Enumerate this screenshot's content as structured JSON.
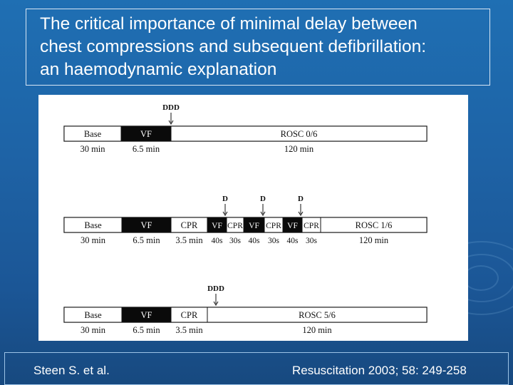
{
  "slide": {
    "title": "The critical importance of minimal delay between\nchest compressions and subsequent defibrillation:\nan haemodynamic explanation",
    "footer_left": "Steen S. et al.",
    "footer_right": "Resuscitation 2003; 58: 249-258"
  },
  "diagram": {
    "rows": [
      {
        "markers": [
          {
            "label": "DDD"
          }
        ],
        "segments": [
          {
            "label": "Base",
            "dark": false,
            "sub": "30 min"
          },
          {
            "label": "VF",
            "dark": true,
            "sub": "6.5 min"
          },
          {
            "label": "ROSC 0/6",
            "dark": false,
            "sub": "120 min"
          }
        ]
      },
      {
        "markers": [
          {
            "label": "D"
          },
          {
            "label": "D"
          },
          {
            "label": "D"
          }
        ],
        "segments": [
          {
            "label": "Base",
            "dark": false,
            "sub": "30 min"
          },
          {
            "label": "VF",
            "dark": true,
            "sub": "6.5 min"
          },
          {
            "label": "CPR",
            "dark": false,
            "sub": "3.5 min"
          },
          {
            "label": "VF",
            "dark": true,
            "sub": "40s"
          },
          {
            "label": "CPR",
            "dark": false,
            "sub": "30s"
          },
          {
            "label": "VF",
            "dark": true,
            "sub": "40s"
          },
          {
            "label": "CPR",
            "dark": false,
            "sub": "30s"
          },
          {
            "label": "VF",
            "dark": true,
            "sub": "40s"
          },
          {
            "label": "CPR",
            "dark": false,
            "sub": "30s"
          },
          {
            "label": "ROSC 1/6",
            "dark": false,
            "sub": "120 min"
          }
        ]
      },
      {
        "markers": [
          {
            "label": "DDD"
          }
        ],
        "segments": [
          {
            "label": "Base",
            "dark": false,
            "sub": "30 min"
          },
          {
            "label": "VF",
            "dark": true,
            "sub": "6.5 min"
          },
          {
            "label": "CPR",
            "dark": false,
            "sub": "3.5 min"
          },
          {
            "label": "ROSC 5/6",
            "dark": false,
            "sub": "120 min"
          }
        ]
      }
    ]
  }
}
